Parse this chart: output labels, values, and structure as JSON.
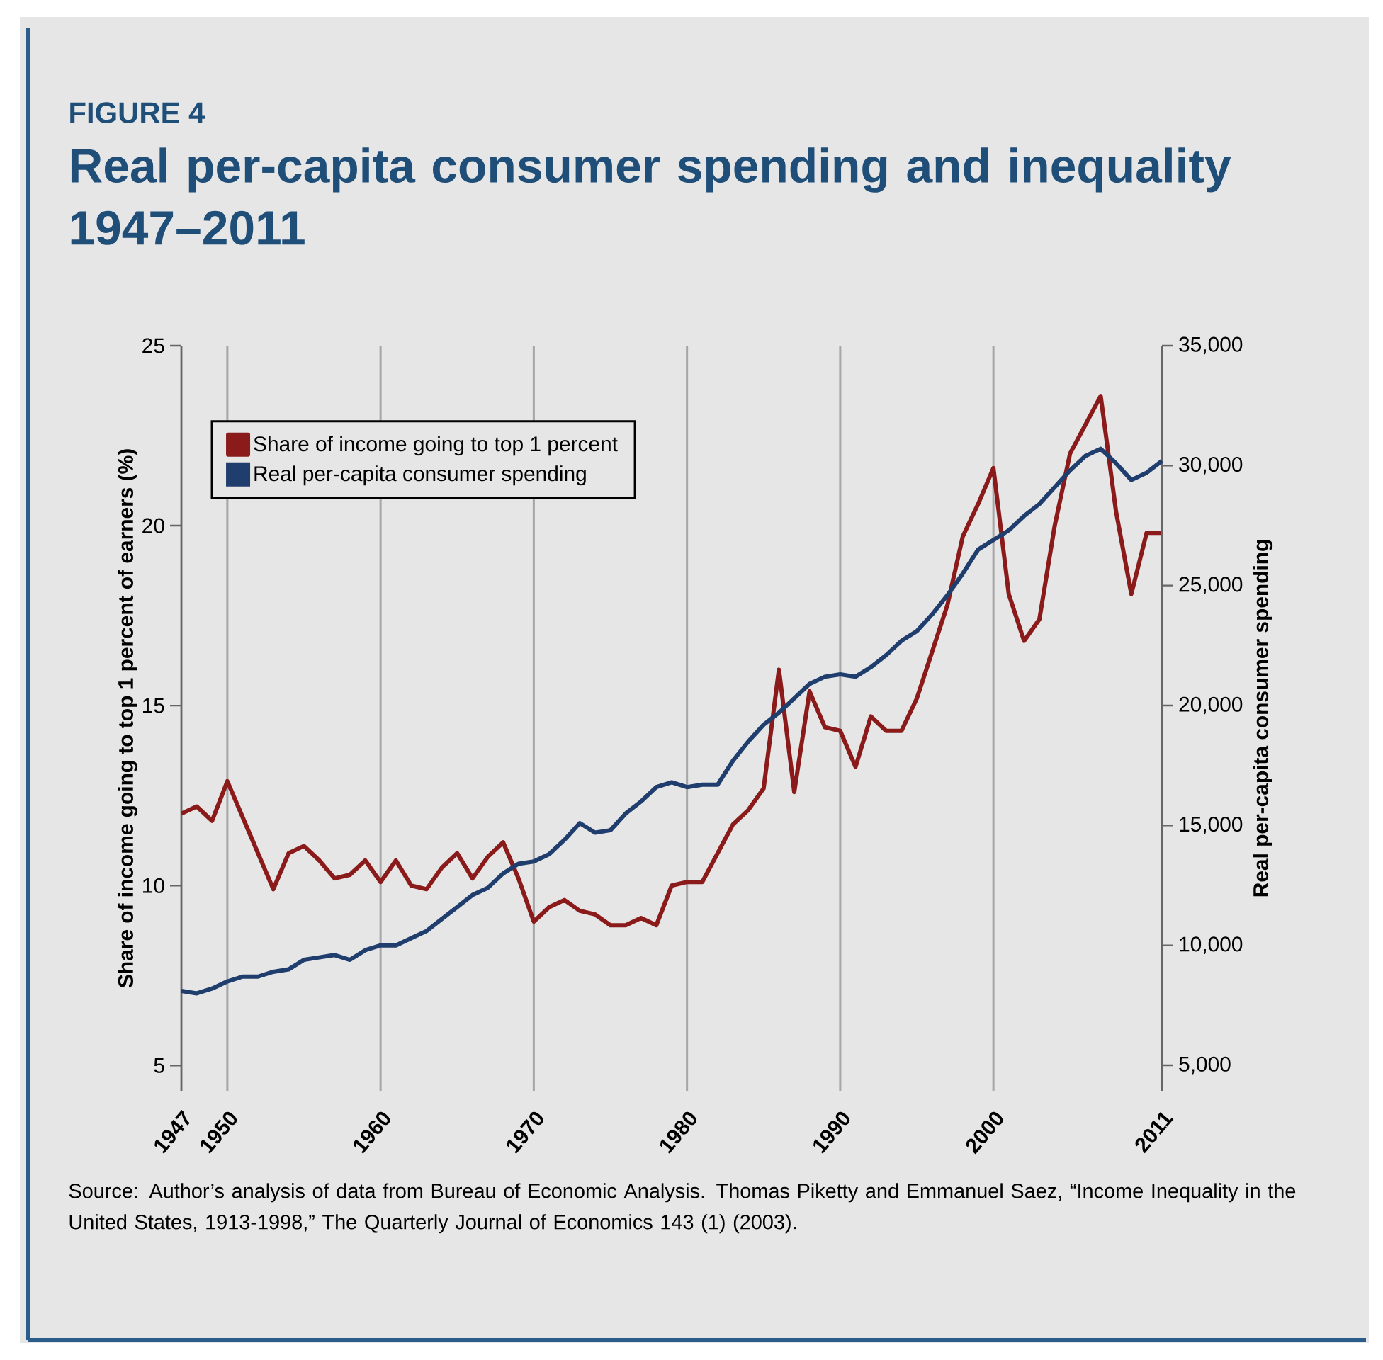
{
  "chart_data": {
    "type": "line",
    "subtitle": "FIGURE 4",
    "title": "Real per-capita consumer spending and inequality 1947–2011",
    "ylabel": "Share of income going to top 1 percent of earners (%)",
    "y2label": "Real per-capita consumer spending",
    "x": [
      1947,
      1948,
      1949,
      1950,
      1951,
      1952,
      1953,
      1954,
      1955,
      1956,
      1957,
      1958,
      1959,
      1960,
      1961,
      1962,
      1963,
      1964,
      1965,
      1966,
      1967,
      1968,
      1969,
      1970,
      1971,
      1972,
      1973,
      1974,
      1975,
      1976,
      1977,
      1978,
      1979,
      1980,
      1981,
      1982,
      1983,
      1984,
      1985,
      1986,
      1987,
      1988,
      1989,
      1990,
      1991,
      1992,
      1993,
      1994,
      1995,
      1996,
      1997,
      1998,
      1999,
      2000,
      2001,
      2002,
      2003,
      2004,
      2005,
      2006,
      2007,
      2008,
      2009,
      2010,
      2011
    ],
    "series": [
      {
        "name": "Share of income going to top 1 percent",
        "color": "#8b1a1a",
        "values": [
          12.0,
          12.2,
          11.8,
          12.9,
          11.9,
          10.9,
          9.9,
          10.9,
          11.1,
          10.7,
          10.2,
          10.3,
          10.7,
          10.1,
          10.7,
          10.0,
          9.9,
          10.5,
          10.9,
          10.2,
          10.8,
          11.2,
          10.2,
          9.0,
          9.4,
          9.6,
          9.3,
          9.2,
          8.9,
          8.9,
          9.1,
          8.9,
          10.0,
          10.1,
          10.1,
          10.9,
          11.7,
          12.1,
          12.7,
          16.0,
          12.6,
          15.4,
          14.4,
          14.3,
          13.3,
          14.7,
          14.3,
          14.3,
          15.2,
          16.5,
          17.8,
          19.7,
          20.6,
          21.6,
          18.1,
          16.8,
          17.4,
          20.0,
          22.0,
          22.8,
          23.6,
          20.4,
          18.1,
          19.8,
          19.8
        ]
      },
      {
        "name": "Real per-capita consumer spending",
        "color": "#1f3e6e",
        "axis": "y2",
        "values": [
          8100,
          8000,
          8200,
          8500,
          8700,
          8700,
          8900,
          9000,
          9400,
          9500,
          9600,
          9400,
          9800,
          10000,
          10000,
          10300,
          10600,
          11100,
          11600,
          12100,
          12400,
          13000,
          13400,
          13500,
          13800,
          14400,
          15100,
          14700,
          14800,
          15500,
          16000,
          16600,
          16800,
          16600,
          16700,
          16700,
          17700,
          18500,
          19200,
          19700,
          20300,
          20900,
          21200,
          21300,
          21200,
          21600,
          22100,
          22700,
          23100,
          23800,
          24600,
          25500,
          26500,
          26900,
          27300,
          27900,
          28400,
          29100,
          29800,
          30400,
          30700,
          30100,
          29400,
          29700,
          30200
        ]
      }
    ],
    "xlim": [
      1947,
      2011
    ],
    "xticks": [
      1947,
      1950,
      1960,
      1970,
      1980,
      1990,
      2000,
      2011
    ],
    "ylim": [
      4.3,
      25
    ],
    "yticks": [
      5,
      10,
      15,
      20,
      25
    ],
    "y2lim": [
      3940,
      35000
    ],
    "y2ticks": [
      {
        "value": 5000,
        "label": "5,000"
      },
      {
        "value": 10000,
        "label": "10,000"
      },
      {
        "value": 15000,
        "label": "15,000"
      },
      {
        "value": 20000,
        "label": "20,000"
      },
      {
        "value": 25000,
        "label": "25,000"
      },
      {
        "value": 30000,
        "label": "30,000"
      },
      {
        "value": 35000,
        "label": "35,000"
      }
    ],
    "grid": "x",
    "legend": "top left",
    "annotations": [
      "Source: Author’s analysis of data from Bureau of Economic Analysis. Thomas Piketty and Emmanuel Saez, “Income Inequality in the United States, 1913-1998,” The Quarterly Journal of Economics 143 (1) (2003)."
    ]
  }
}
